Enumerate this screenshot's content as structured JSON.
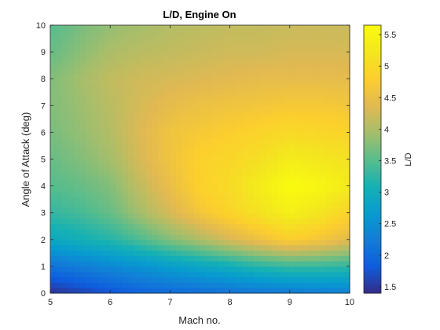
{
  "chart_data": {
    "type": "heatmap",
    "title": "L/D, Engine On",
    "xlabel": "Mach no.",
    "ylabel": "Angle of Attack (deg)",
    "colorbar_label": "L/D",
    "xlim": [
      5,
      10
    ],
    "ylim": [
      0,
      10
    ],
    "clim": [
      1.4,
      5.65
    ],
    "x_ticks": [
      5,
      6,
      7,
      8,
      9,
      10
    ],
    "y_ticks": [
      0,
      1,
      2,
      3,
      4,
      5,
      6,
      7,
      8,
      9,
      10
    ],
    "colorbar_ticks": [
      1.5,
      2,
      2.5,
      3,
      3.5,
      4,
      4.5,
      5,
      5.5
    ],
    "colormap": "parula",
    "x": [
      5,
      5.5,
      6,
      6.5,
      7,
      7.5,
      8,
      8.5,
      9,
      9.5,
      10
    ],
    "y": [
      0,
      1,
      2,
      3,
      4,
      5,
      6,
      7,
      8,
      9,
      10
    ],
    "z": [
      [
        1.45,
        1.6,
        1.75,
        1.9,
        2.0,
        2.05,
        2.1,
        2.15,
        2.2,
        2.25,
        2.3
      ],
      [
        2.1,
        2.25,
        2.4,
        2.55,
        2.7,
        2.85,
        3.0,
        3.2,
        3.3,
        3.3,
        3.25
      ],
      [
        2.9,
        3.05,
        3.2,
        3.45,
        3.75,
        4.0,
        4.3,
        4.55,
        4.8,
        4.65,
        4.4
      ],
      [
        3.3,
        3.4,
        3.6,
        3.95,
        4.3,
        4.65,
        4.9,
        5.15,
        5.4,
        5.2,
        4.9
      ],
      [
        3.5,
        3.6,
        3.75,
        4.15,
        4.5,
        4.85,
        5.05,
        5.35,
        5.65,
        5.55,
        5.3
      ],
      [
        3.6,
        3.75,
        3.95,
        4.3,
        4.6,
        4.85,
        4.95,
        5.1,
        5.35,
        5.25,
        5.15
      ],
      [
        3.7,
        3.85,
        4.05,
        4.35,
        4.6,
        4.7,
        4.8,
        4.9,
        5.0,
        4.95,
        4.9
      ],
      [
        3.75,
        3.9,
        4.1,
        4.3,
        4.45,
        4.55,
        4.6,
        4.65,
        4.7,
        4.7,
        4.65
      ],
      [
        3.75,
        3.95,
        4.15,
        4.25,
        4.3,
        4.35,
        4.4,
        4.45,
        4.45,
        4.45,
        4.45
      ],
      [
        3.6,
        3.8,
        4.0,
        4.1,
        4.15,
        4.2,
        4.25,
        4.25,
        4.3,
        4.3,
        4.3
      ],
      [
        3.5,
        3.7,
        3.85,
        3.95,
        4.05,
        4.1,
        4.15,
        4.15,
        4.2,
        4.2,
        4.2
      ]
    ]
  }
}
